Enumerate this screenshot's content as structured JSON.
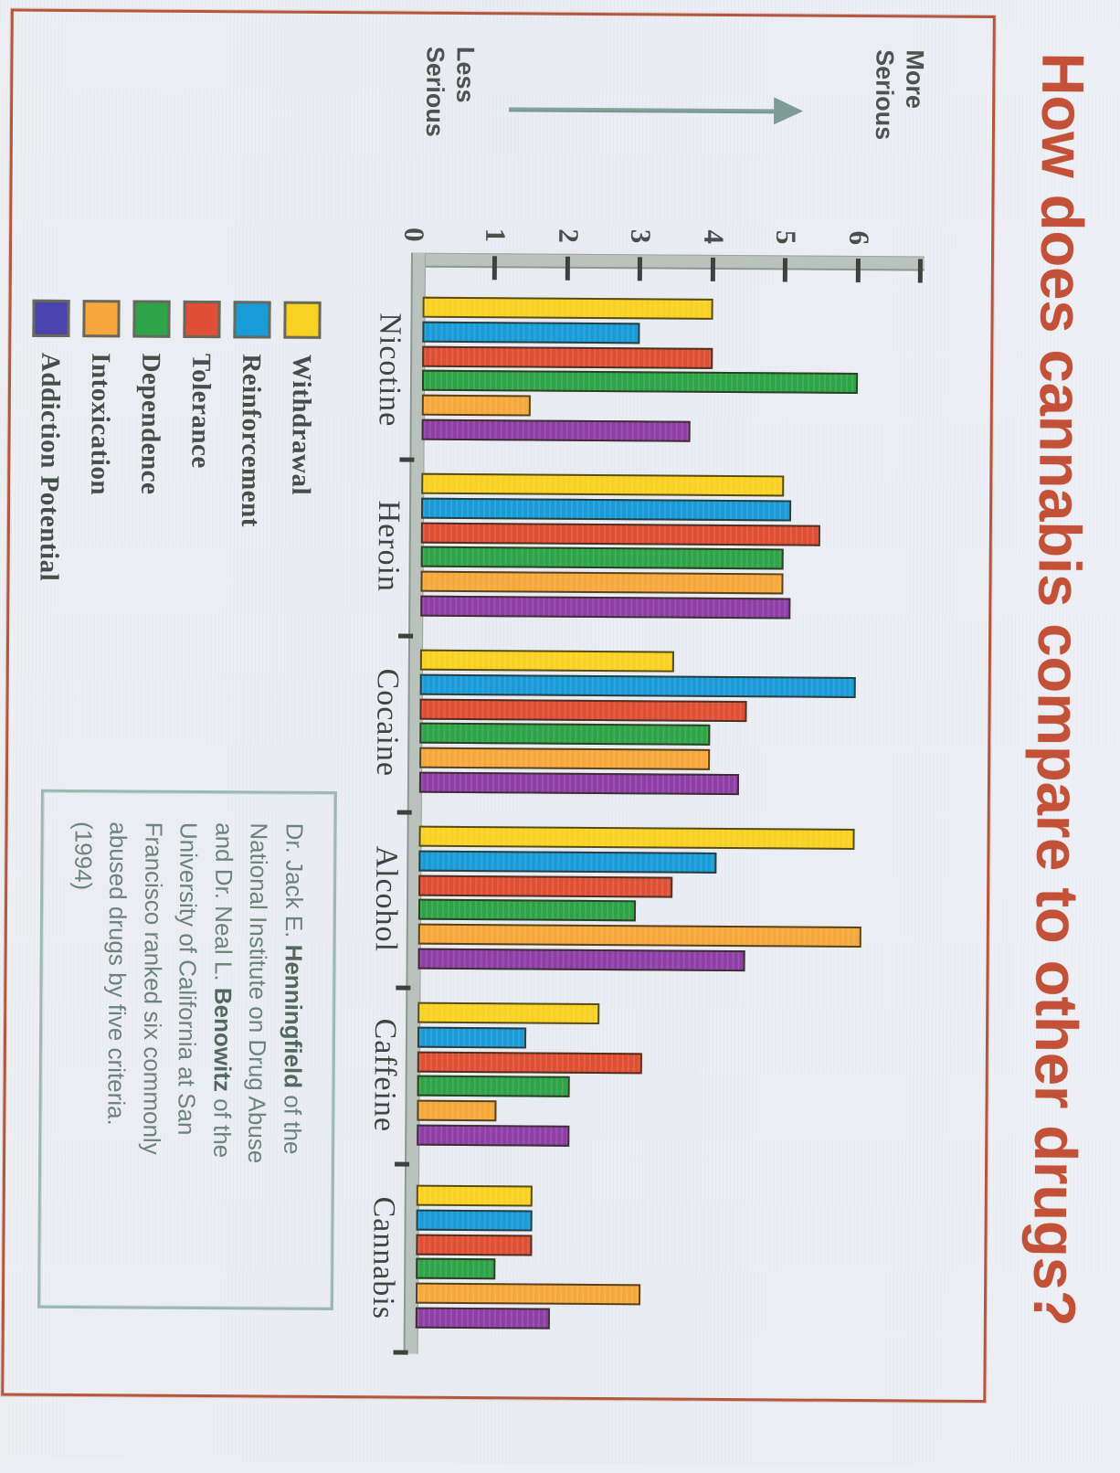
{
  "title": "How does cannabis compare to other drugs?",
  "axis_annotation": {
    "more": [
      "More",
      "Serious"
    ],
    "less": [
      "Less",
      "Serious"
    ]
  },
  "chart_data": {
    "type": "bar",
    "orientation": "vertical-bars-scanned-sideways",
    "title": "How does cannabis compare to other drugs?",
    "categories": [
      "Nicotine",
      "Heroin",
      "Cocaine",
      "Alcohol",
      "Caffeine",
      "Cannabis"
    ],
    "series": [
      {
        "name": "Withdrawal",
        "color": "#f9d123",
        "swatch": "#f9d123",
        "values": [
          4.0,
          5.0,
          3.5,
          6.0,
          2.5,
          1.6
        ]
      },
      {
        "name": "Reinforcement",
        "color": "#189bd7",
        "swatch": "#189bd7",
        "values": [
          3.0,
          5.1,
          6.0,
          4.1,
          1.5,
          1.6
        ]
      },
      {
        "name": "Tolerance",
        "color": "#df4f35",
        "swatch": "#df4f35",
        "values": [
          4.0,
          5.5,
          4.5,
          3.5,
          3.1,
          1.6
        ]
      },
      {
        "name": "Dependence",
        "color": "#2ea348",
        "swatch": "#2ea348",
        "values": [
          6.0,
          5.0,
          4.0,
          3.0,
          2.1,
          1.1
        ]
      },
      {
        "name": "Intoxication",
        "color": "#f6a83c",
        "swatch": "#f6a83c",
        "values": [
          1.5,
          5.0,
          4.0,
          6.1,
          1.1,
          3.1
        ]
      },
      {
        "name": "Addiction Potential",
        "color": "#8e3fa6",
        "swatch": "#4c44ae",
        "values": [
          3.7,
          5.1,
          4.4,
          4.5,
          2.1,
          1.85
        ]
      }
    ],
    "ylim": [
      0,
      6
    ],
    "yticks": [
      "0",
      "1",
      "2",
      "3",
      "4",
      "5",
      "6"
    ],
    "y_axis_annotation_top": "More Serious",
    "y_axis_annotation_bottom": "Less Serious",
    "grid": false,
    "legend_position": "bottom-left"
  },
  "citation": {
    "lines": [
      [
        {
          "t": "Dr. Jack E. "
        },
        {
          "t": "Henningfield",
          "b": 1
        },
        {
          "t": " of the"
        }
      ],
      [
        {
          "t": "National Institute on Drug Abuse"
        }
      ],
      [
        {
          "t": "and Dr. Neal L. "
        },
        {
          "t": "Benowitz",
          "b": 1
        },
        {
          "t": " of the"
        }
      ],
      [
        {
          "t": "University of California at San"
        }
      ],
      [
        {
          "t": "Francisco ranked six commonly"
        }
      ],
      [
        {
          "t": "abused drugs by five criteria."
        }
      ],
      [
        {
          "t": "(1994)"
        }
      ]
    ]
  }
}
